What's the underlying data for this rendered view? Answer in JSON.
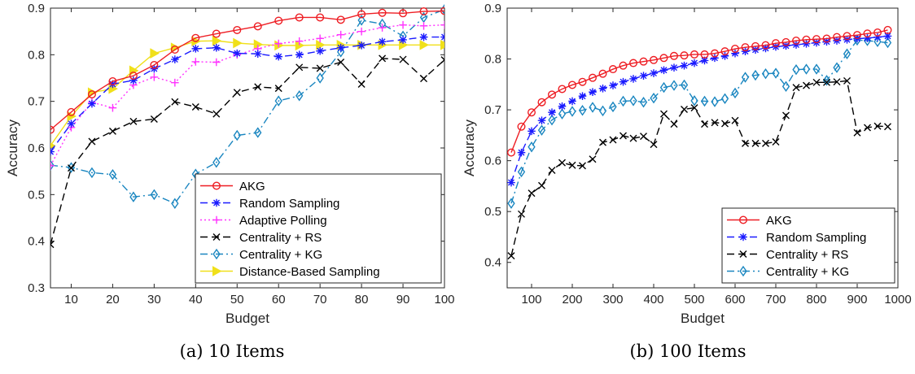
{
  "chart_data": [
    {
      "type": "line",
      "caption": "(a) 10 Items",
      "xlabel": "Budget",
      "ylabel": "Accuracy",
      "xlim": [
        5,
        100
      ],
      "ylim": [
        0.3,
        0.9
      ],
      "xticks": [
        10,
        20,
        30,
        40,
        50,
        60,
        70,
        80,
        90,
        100
      ],
      "yticks": [
        0.3,
        0.4,
        0.5,
        0.6,
        0.7,
        0.8,
        0.9
      ],
      "grid": false,
      "legend_position": "bottom-right",
      "x": [
        5,
        10,
        15,
        20,
        25,
        30,
        35,
        40,
        45,
        50,
        55,
        60,
        65,
        70,
        75,
        80,
        85,
        90,
        95,
        100
      ],
      "series": [
        {
          "name": "AKG",
          "color": "#ee1d23",
          "dash": "solid",
          "marker": "circle",
          "values": [
            0.639,
            0.677,
            0.715,
            0.743,
            0.755,
            0.778,
            0.811,
            0.836,
            0.845,
            0.853,
            0.861,
            0.873,
            0.88,
            0.88,
            0.875,
            0.887,
            0.89,
            0.889,
            0.893,
            0.894
          ]
        },
        {
          "name": "Random Sampling",
          "color": "#1a1aff",
          "dash": "dashed",
          "marker": "asterisk",
          "values": [
            0.592,
            0.652,
            0.695,
            0.737,
            0.745,
            0.77,
            0.79,
            0.813,
            0.815,
            0.803,
            0.802,
            0.796,
            0.8,
            0.808,
            0.815,
            0.82,
            0.828,
            0.832,
            0.838,
            0.838
          ]
        },
        {
          "name": "Adaptive Polling",
          "color": "#ff33ff",
          "dash": "dotted",
          "marker": "plus",
          "values": [
            0.562,
            0.644,
            0.698,
            0.686,
            0.735,
            0.752,
            0.74,
            0.785,
            0.784,
            0.8,
            0.813,
            0.824,
            0.829,
            0.835,
            0.843,
            0.85,
            0.858,
            0.864,
            0.862,
            0.864
          ]
        },
        {
          "name": "Centrality + RS",
          "color": "#000000",
          "dash": "dashed",
          "marker": "x",
          "values": [
            0.393,
            0.557,
            0.614,
            0.636,
            0.657,
            0.662,
            0.699,
            0.688,
            0.673,
            0.719,
            0.731,
            0.728,
            0.773,
            0.771,
            0.784,
            0.737,
            0.792,
            0.79,
            0.749,
            0.789
          ]
        },
        {
          "name": "Centrality + KG",
          "color": "#1a86c0",
          "dash": "dashdot",
          "marker": "diamond",
          "values": [
            0.563,
            0.558,
            0.547,
            0.543,
            0.495,
            0.5,
            0.481,
            0.544,
            0.569,
            0.627,
            0.633,
            0.701,
            0.712,
            0.75,
            0.806,
            0.874,
            0.866,
            0.84,
            0.88,
            0.897
          ]
        },
        {
          "name": "Distance-Based Sampling",
          "color": "#f0e01a",
          "dash": "solid",
          "marker": "triangle-right",
          "values": [
            0.605,
            0.668,
            0.719,
            0.727,
            0.766,
            0.803,
            0.815,
            0.829,
            0.83,
            0.825,
            0.822,
            0.82,
            0.82,
            0.821,
            0.821,
            0.821,
            0.821,
            0.821,
            0.821,
            0.821
          ]
        }
      ]
    },
    {
      "type": "line",
      "caption": "(b) 100 Items",
      "xlabel": "Budget",
      "ylabel": "Accuracy",
      "xlim": [
        40,
        1000
      ],
      "ylim": [
        0.35,
        0.9
      ],
      "xticks": [
        100,
        200,
        300,
        400,
        500,
        600,
        700,
        800,
        900,
        1000
      ],
      "yticks": [
        0.4,
        0.5,
        0.6,
        0.7,
        0.8,
        0.9
      ],
      "grid": false,
      "legend_position": "bottom-right",
      "x": [
        50,
        75,
        100,
        125,
        150,
        175,
        200,
        225,
        250,
        275,
        300,
        325,
        350,
        375,
        400,
        425,
        450,
        475,
        500,
        525,
        550,
        575,
        600,
        625,
        650,
        675,
        700,
        725,
        750,
        775,
        800,
        825,
        850,
        875,
        900,
        925,
        950,
        975
      ],
      "series": [
        {
          "name": "AKG",
          "color": "#ee1d23",
          "dash": "solid",
          "marker": "circle",
          "values": [
            0.616,
            0.667,
            0.695,
            0.715,
            0.73,
            0.741,
            0.749,
            0.755,
            0.763,
            0.771,
            0.78,
            0.787,
            0.792,
            0.795,
            0.798,
            0.802,
            0.806,
            0.807,
            0.809,
            0.809,
            0.811,
            0.815,
            0.82,
            0.823,
            0.825,
            0.827,
            0.831,
            0.833,
            0.836,
            0.838,
            0.839,
            0.84,
            0.843,
            0.845,
            0.847,
            0.85,
            0.852,
            0.857
          ]
        },
        {
          "name": "Random Sampling",
          "color": "#1a1aff",
          "dash": "dashed",
          "marker": "asterisk",
          "values": [
            0.557,
            0.616,
            0.658,
            0.679,
            0.695,
            0.707,
            0.717,
            0.727,
            0.735,
            0.742,
            0.748,
            0.755,
            0.761,
            0.767,
            0.772,
            0.778,
            0.783,
            0.787,
            0.792,
            0.797,
            0.802,
            0.806,
            0.811,
            0.815,
            0.818,
            0.821,
            0.824,
            0.826,
            0.828,
            0.83,
            0.832,
            0.834,
            0.836,
            0.838,
            0.84,
            0.841,
            0.843,
            0.845
          ]
        },
        {
          "name": "Centrality + RS",
          "color": "#000000",
          "dash": "dashed",
          "marker": "x",
          "values": [
            0.413,
            0.495,
            0.536,
            0.551,
            0.581,
            0.596,
            0.591,
            0.59,
            0.603,
            0.636,
            0.641,
            0.649,
            0.644,
            0.648,
            0.632,
            0.692,
            0.672,
            0.701,
            0.704,
            0.672,
            0.675,
            0.673,
            0.679,
            0.634,
            0.634,
            0.634,
            0.637,
            0.689,
            0.744,
            0.748,
            0.754,
            0.754,
            0.755,
            0.757,
            0.655,
            0.665,
            0.668,
            0.667
          ]
        },
        {
          "name": "Centrality + KG",
          "color": "#1a86c0",
          "dash": "dashdot",
          "marker": "diamond",
          "values": [
            0.516,
            0.578,
            0.627,
            0.66,
            0.68,
            0.692,
            0.697,
            0.699,
            0.705,
            0.698,
            0.706,
            0.717,
            0.718,
            0.715,
            0.723,
            0.744,
            0.748,
            0.749,
            0.718,
            0.717,
            0.716,
            0.722,
            0.733,
            0.764,
            0.768,
            0.771,
            0.772,
            0.746,
            0.779,
            0.78,
            0.78,
            0.758,
            0.783,
            0.81,
            0.837,
            0.836,
            0.834,
            0.832
          ]
        }
      ]
    }
  ]
}
